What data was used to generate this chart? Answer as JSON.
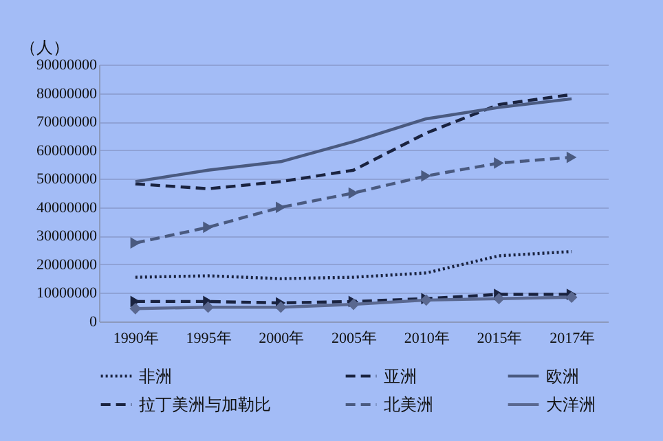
{
  "chart_data": {
    "type": "line",
    "ylabel": "（人）",
    "categories": [
      "1990年",
      "1995年",
      "2000年",
      "2005年",
      "2010年",
      "2015年",
      "2017年"
    ],
    "ylim": [
      0,
      90000000
    ],
    "yticks": [
      0,
      10000000,
      20000000,
      30000000,
      40000000,
      50000000,
      60000000,
      70000000,
      80000000,
      90000000
    ],
    "grid": "y",
    "legend": "bottom",
    "series": [
      {
        "name": "非洲",
        "color": "#1a2340",
        "line_style": "dotted",
        "marker": "none",
        "values": [
          15500000,
          16000000,
          15000000,
          15500000,
          17000000,
          23000000,
          24500000
        ]
      },
      {
        "name": "亚洲",
        "color": "#1a2340",
        "line_style": "dashed",
        "marker": "none",
        "values": [
          48200000,
          46500000,
          49000000,
          53000000,
          66000000,
          76000000,
          79500000
        ]
      },
      {
        "name": "欧洲",
        "color": "#4a5a80",
        "line_style": "solid",
        "marker": "none",
        "values": [
          49000000,
          53000000,
          56000000,
          63000000,
          71000000,
          75000000,
          78000000
        ]
      },
      {
        "name": "拉丁美洲与加勒比",
        "color": "#1a2340",
        "line_style": "dashed",
        "marker": "triangle",
        "values": [
          7000000,
          7000000,
          6500000,
          7000000,
          8000000,
          9500000,
          9500000
        ]
      },
      {
        "name": "北美洲",
        "color": "#4a5a80",
        "line_style": "dashed",
        "marker": "triangle",
        "values": [
          27500000,
          33000000,
          40000000,
          45000000,
          51000000,
          55500000,
          57500000
        ]
      },
      {
        "name": "大洋洲",
        "color": "#5a6890",
        "line_style": "solid",
        "marker": "diamond",
        "values": [
          4500000,
          5000000,
          5000000,
          6000000,
          7500000,
          8000000,
          8500000
        ]
      }
    ]
  }
}
